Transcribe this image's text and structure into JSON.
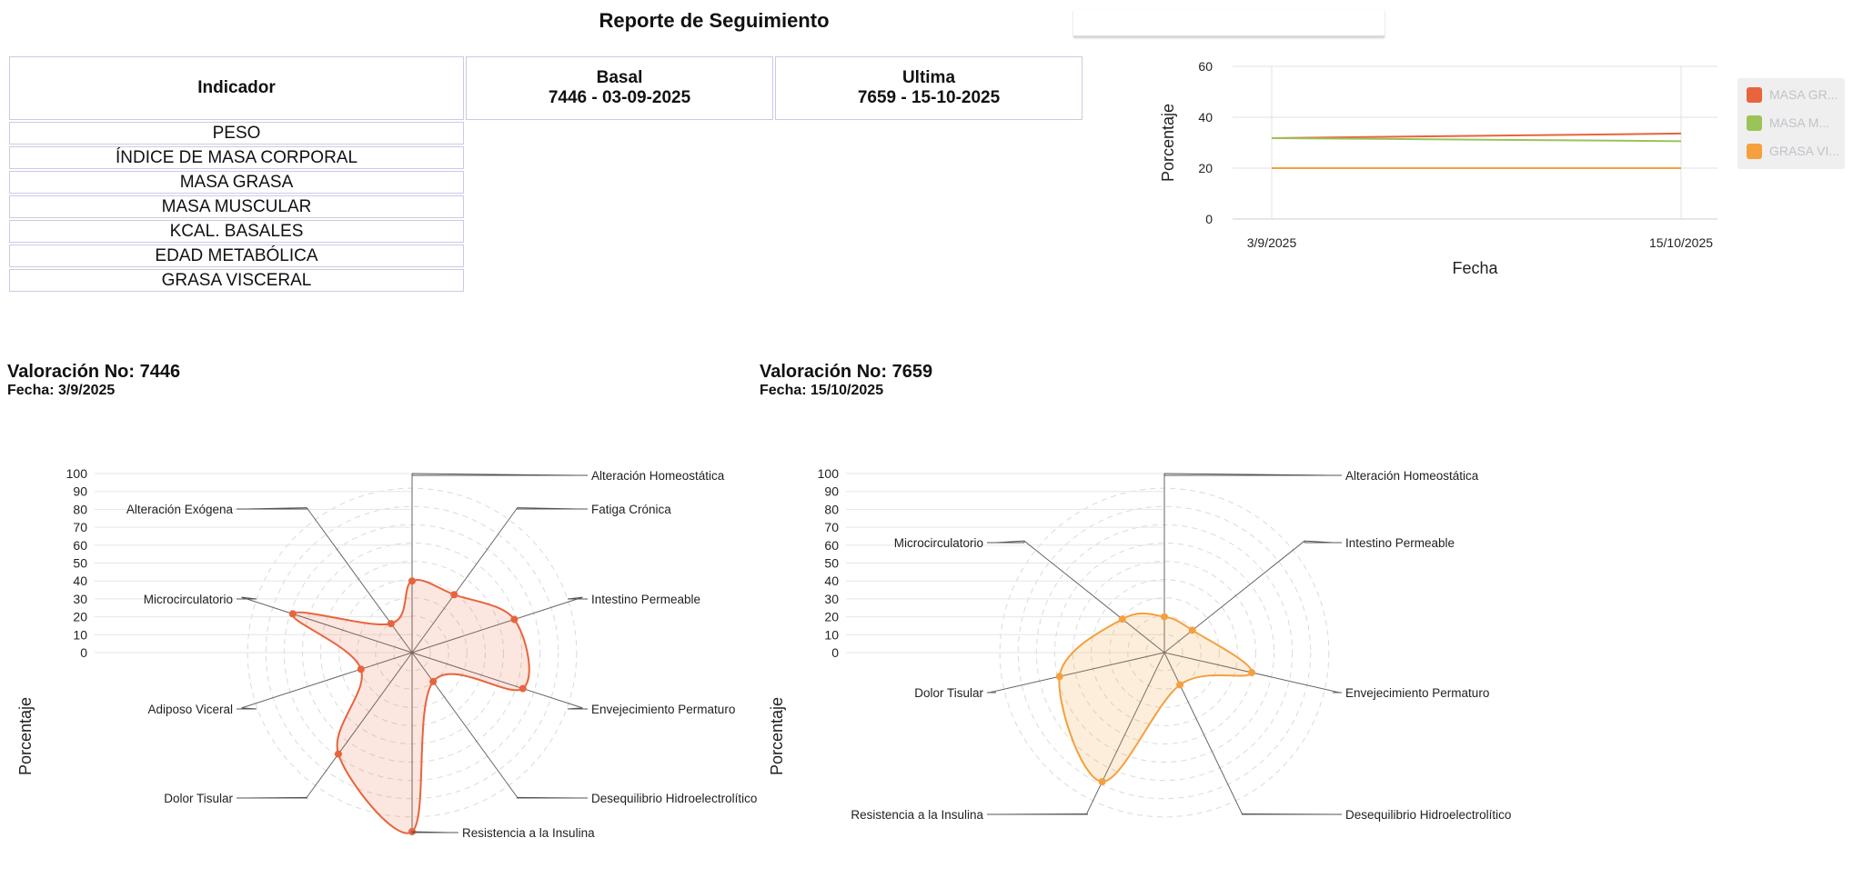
{
  "report": {
    "title": "Reporte de Seguimiento"
  },
  "table": {
    "headers": [
      {
        "l1": "Indicador",
        "l2": ""
      },
      {
        "l1": "Basal",
        "l2": "7446 - 03-09-2025"
      },
      {
        "l1": "Ultima",
        "l2": "7659 - 15-10-2025"
      }
    ],
    "rows": [
      "PESO",
      "ÍNDICE DE MASA CORPORAL",
      "MASA GRASA",
      "MASA MUSCULAR",
      "KCAL. BASALES",
      "EDAD METABÓLICA",
      "GRASA VISCERAL"
    ]
  },
  "valuations": [
    {
      "title": "Valoración No: 7446",
      "date": "Fecha: 3/9/2025"
    },
    {
      "title": "Valoración No: 7659",
      "date": "Fecha: 15/10/2025"
    }
  ],
  "chart_data": [
    {
      "type": "line",
      "x": [
        "3/9/2025",
        "15/10/2025"
      ],
      "xlabel": "Fecha",
      "ylabel": "Porcentaje",
      "ylim": [
        0,
        60
      ],
      "yticks": [
        0,
        20,
        40,
        60
      ],
      "grid": true,
      "legend": "right",
      "series": [
        {
          "name": "MASA GR...",
          "color": "#e8643c",
          "values": [
            31.8,
            33.6
          ]
        },
        {
          "name": "MASA M...",
          "color": "#9ac35a",
          "values": [
            31.8,
            30.6
          ]
        },
        {
          "name": "GRASA VI...",
          "color": "#f4a03e",
          "values": [
            20,
            20
          ]
        }
      ]
    },
    {
      "type": "radar",
      "title": "Valoración No: 7446",
      "ylabel": "Porcentaje",
      "range": [
        0,
        100
      ],
      "ticks": [
        0,
        10,
        20,
        30,
        40,
        50,
        60,
        70,
        80,
        90,
        100
      ],
      "color": "#e8643c",
      "fill": "rgba(232,100,60,0.16)",
      "categories": [
        "Alteración Homeostática",
        "Fatiga Crónica",
        "Intestino Permeable",
        "Envejecimiento Permaturo",
        "Desequilibrio Hidroelectrolítico",
        "Resistencia a la Insulina",
        "Dolor Tisular",
        "Adiposo Viceral",
        "Microcirculatorio",
        "Alteración Exógena"
      ],
      "values": [
        40,
        40,
        60,
        65,
        20,
        100,
        70,
        30,
        70,
        20
      ]
    },
    {
      "type": "radar",
      "title": "Valoración No: 7659",
      "ylabel": "Porcentaje",
      "range": [
        0,
        100
      ],
      "ticks": [
        0,
        10,
        20,
        30,
        40,
        50,
        60,
        70,
        80,
        90,
        100
      ],
      "color": "#f4a03e",
      "fill": "rgba(244,160,62,0.18)",
      "categories": [
        "Alteración Homeostática",
        "Intestino Permeable",
        "Envejecimiento Permaturo",
        "Desequilibrio Hidroelectrolítico",
        "Resistencia a la Insulina",
        "Dolor Tisular",
        "Microcirculatorio"
      ],
      "values": [
        20,
        20,
        50,
        20,
        80,
        60,
        30
      ]
    }
  ]
}
